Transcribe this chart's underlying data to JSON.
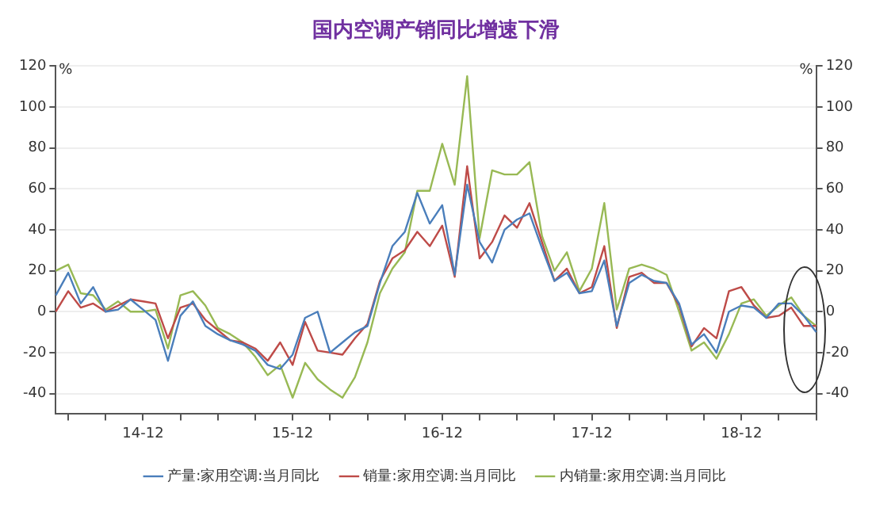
{
  "chart_data": {
    "type": "line",
    "title": "国内空调产销同比增速下滑",
    "ylabel": "%",
    "y2label": "%",
    "categories": [
      null,
      null,
      null,
      null,
      null,
      null,
      null,
      "14-12",
      null,
      null,
      null,
      null,
      null,
      null,
      null,
      null,
      null,
      null,
      null,
      "15-12",
      null,
      null,
      null,
      null,
      null,
      null,
      null,
      null,
      null,
      null,
      null,
      "16-12",
      null,
      null,
      null,
      null,
      null,
      null,
      null,
      null,
      null,
      null,
      null,
      "17-12",
      null,
      null,
      null,
      null,
      null,
      null,
      null,
      null,
      null,
      null,
      null,
      "18-12",
      null,
      null,
      null,
      null,
      null,
      null
    ],
    "series": [
      {
        "name": "产量:家用空调:当月同比",
        "color": "#4a7ebb",
        "values": [
          8,
          19,
          4,
          12,
          0,
          1,
          6,
          1,
          -4,
          -24,
          -2,
          5,
          -7,
          -11,
          -14,
          -16,
          -19,
          -26,
          -28,
          -21,
          -3,
          0,
          -20,
          -15,
          -10,
          -7,
          14,
          32,
          39,
          58,
          43,
          52,
          18,
          62,
          34,
          24,
          40,
          45,
          48,
          31,
          15,
          19,
          9,
          10,
          25,
          -7,
          14,
          18,
          15,
          14,
          4,
          -16,
          -11,
          -20,
          0,
          3,
          2,
          -3,
          4,
          4,
          -2,
          -10
        ]
      },
      {
        "name": "销量:家用空调:当月同比",
        "color": "#be4b48",
        "values": [
          0,
          10,
          2,
          4,
          0,
          3,
          6,
          5,
          4,
          -13,
          2,
          4,
          -4,
          -9,
          -14,
          -15,
          -18,
          -24,
          -15,
          -26,
          -5,
          -19,
          -20,
          -21,
          -13,
          -6,
          15,
          26,
          30,
          39,
          32,
          42,
          17,
          71,
          26,
          34,
          47,
          41,
          53,
          34,
          15,
          21,
          9,
          12,
          32,
          -8,
          17,
          19,
          14,
          14,
          3,
          -17,
          -8,
          -13,
          10,
          12,
          3,
          -3,
          -2,
          2,
          -7,
          -7
        ]
      },
      {
        "name": "内销量:家用空调:当月同比",
        "color": "#98b954",
        "values": [
          20,
          23,
          9,
          8,
          1,
          5,
          0,
          0,
          1,
          -18,
          8,
          10,
          3,
          -8,
          -11,
          -15,
          -22,
          -31,
          -26,
          -42,
          -25,
          -33,
          -38,
          -42,
          -32,
          -15,
          9,
          21,
          29,
          59,
          59,
          82,
          62,
          115,
          36,
          69,
          67,
          67,
          73,
          37,
          20,
          29,
          10,
          21,
          53,
          1,
          21,
          23,
          21,
          18,
          0,
          -19,
          -15,
          -23,
          -11,
          4,
          6,
          -2,
          3,
          7,
          -2,
          -7
        ]
      }
    ],
    "ylim": [
      -50,
      120
    ],
    "yticks": [
      -40,
      -20,
      0,
      20,
      40,
      60,
      80,
      100,
      120
    ],
    "y2lim": [
      -50,
      120
    ],
    "y2ticks": [
      -40,
      -20,
      0,
      20,
      40,
      60,
      80,
      100,
      120
    ],
    "grid": "y",
    "legend": "bottom",
    "marker": "none",
    "line_style": "solid"
  }
}
